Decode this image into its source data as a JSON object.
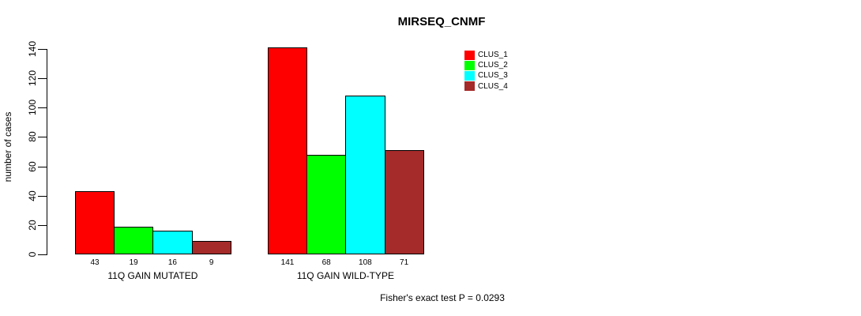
{
  "chart_data": {
    "type": "bar",
    "title": "MIRSEQ_CNMF",
    "ylabel": "number of cases",
    "xlabel": "",
    "ylim": [
      0,
      140
    ],
    "yticks": [
      0,
      20,
      40,
      60,
      80,
      100,
      120,
      140
    ],
    "grid": false,
    "legend_position": "top-right",
    "categories": [
      "11Q GAIN MUTATED",
      "11Q GAIN WILD-TYPE"
    ],
    "series": [
      {
        "name": "CLUS_1",
        "color": "#ff0000",
        "values": [
          43,
          141
        ]
      },
      {
        "name": "CLUS_2",
        "color": "#00ff00",
        "values": [
          19,
          68
        ]
      },
      {
        "name": "CLUS_3",
        "color": "#00ffff",
        "values": [
          16,
          108
        ]
      },
      {
        "name": "CLUS_4",
        "color": "#a52a2a",
        "values": [
          9,
          71
        ]
      }
    ],
    "bar_value_labels": [
      [
        43,
        19,
        16,
        9
      ],
      [
        141,
        68,
        108,
        71
      ]
    ],
    "annotation": "Fisher's exact test P = 0.0293"
  }
}
